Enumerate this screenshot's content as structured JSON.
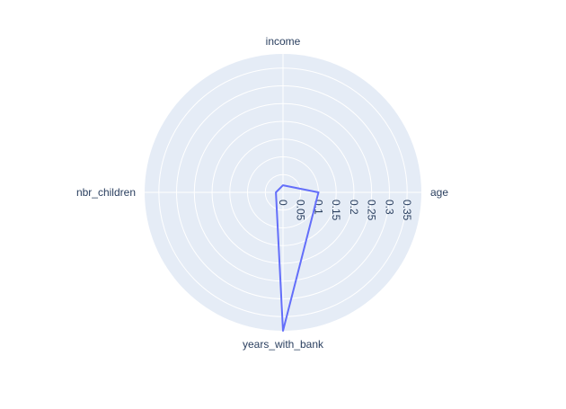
{
  "chart_data": {
    "type": "radar",
    "title": "",
    "axes": [
      "age",
      "income",
      "nbr_children",
      "years_with_bank"
    ],
    "series": [
      {
        "values": [
          0.1,
          0.02,
          0.02,
          0.39
        ],
        "color": "#636efa"
      }
    ],
    "radial_range": [
      0,
      0.39
    ],
    "radial_ticks": [
      0,
      0.05,
      0.1,
      0.15,
      0.2,
      0.25,
      0.3,
      0.35
    ],
    "tick_labels": [
      "0",
      "0.05",
      "0.1",
      "0.15",
      "0.2",
      "0.25",
      "0.3",
      "0.35"
    ],
    "grid": true,
    "legend": "none",
    "colors": {
      "plot_background": "#e5ecf6",
      "gridline": "#ffffff",
      "text": "#2a3f5f"
    }
  }
}
